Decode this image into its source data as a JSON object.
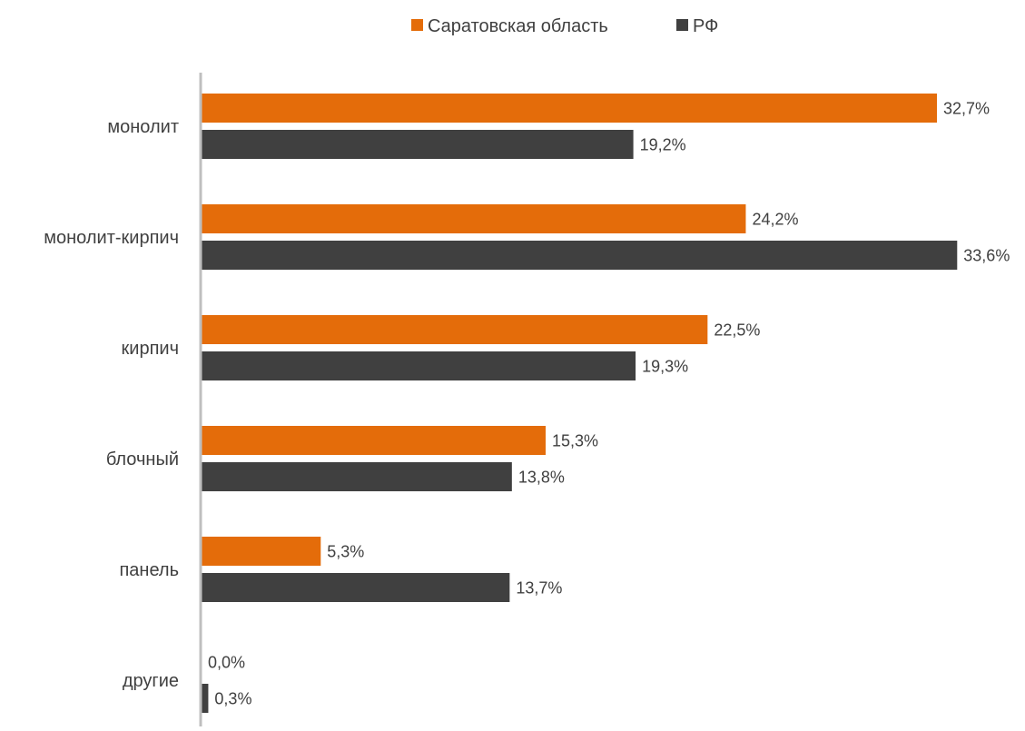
{
  "chart_data": {
    "type": "bar",
    "orientation": "horizontal",
    "categories": [
      "монолит",
      "монолит-кирпич",
      "кирпич",
      "блочный",
      "панель",
      "другие"
    ],
    "series": [
      {
        "name": "Саратовская область",
        "color": "#E46C0A",
        "values": [
          32.7,
          24.2,
          22.5,
          15.3,
          5.3,
          0.0
        ],
        "labels": [
          "32,7%",
          "24,2%",
          "22,5%",
          "15,3%",
          "5,3%",
          "0,0%"
        ]
      },
      {
        "name": "РФ",
        "color": "#404040",
        "values": [
          19.2,
          33.6,
          19.3,
          13.8,
          13.7,
          0.3
        ],
        "labels": [
          "19,2%",
          "33,6%",
          "19,3%",
          "13,8%",
          "13,7%",
          "0,3%"
        ]
      }
    ],
    "title": "",
    "xlabel": "",
    "ylabel": "",
    "xlim": [
      0,
      35
    ],
    "unit": "%",
    "grid": false,
    "legend_position": "top-center",
    "axis_color": "#BFBFBF"
  }
}
